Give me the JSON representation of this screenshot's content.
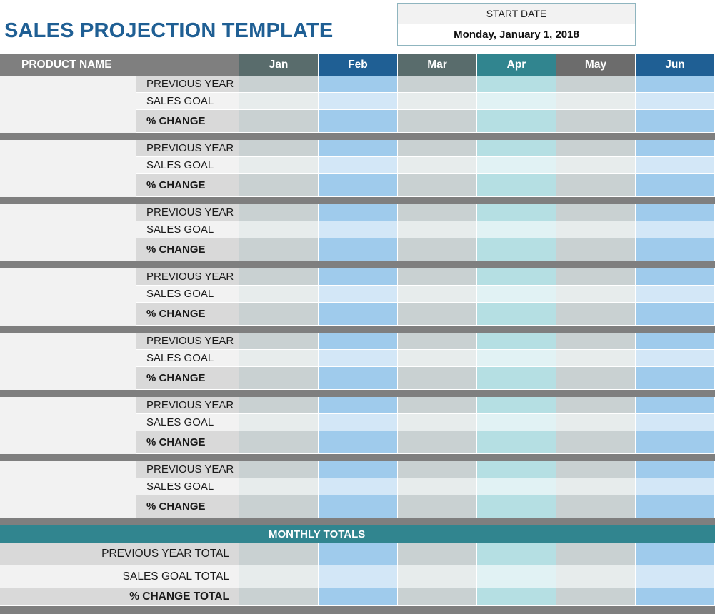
{
  "title": "SALES PROJECTION TEMPLATE",
  "start_date": {
    "label": "START DATE",
    "value": "Monday, January 1, 2018"
  },
  "header": {
    "product_name": "PRODUCT NAME",
    "months": [
      "Jan",
      "Feb",
      "Mar",
      "Apr",
      "May",
      "Jun"
    ]
  },
  "row_labels": [
    "PREVIOUS YEAR",
    "SALES GOAL",
    "% CHANGE"
  ],
  "product_block_count": 7,
  "totals": {
    "band_label": "MONTHLY TOTALS",
    "row_labels": [
      "PREVIOUS YEAR TOTAL",
      "SALES GOAL TOTAL",
      "% CHANGE TOTAL"
    ]
  },
  "colors": {
    "header_gray": "#7f7f7f",
    "month_header": [
      "#596c6c",
      "#1f5f94",
      "#596c6c",
      "#31858f",
      "#6c6c6c",
      "#1f5f94"
    ],
    "title": "#1f5f94",
    "totals_band": "#31858f",
    "separator": "#7f7f7f",
    "label_dark": "#d9d9d9",
    "label_light": "#f2f2f2",
    "product_cell": "#f2f2f2",
    "col_shades": [
      [
        "#c9d1d2",
        "#e7ecec",
        "#c9d1d2"
      ],
      [
        "#9fcbec",
        "#d3e7f7",
        "#9fcbec"
      ],
      [
        "#c9d1d2",
        "#e7ecec",
        "#c9d1d2"
      ],
      [
        "#b5dfe3",
        "#e1f2f4",
        "#b5dfe3"
      ],
      [
        "#c9d1d2",
        "#e7ecec",
        "#c9d1d2"
      ],
      [
        "#9fcbec",
        "#d3e7f7",
        "#9fcbec"
      ]
    ]
  }
}
